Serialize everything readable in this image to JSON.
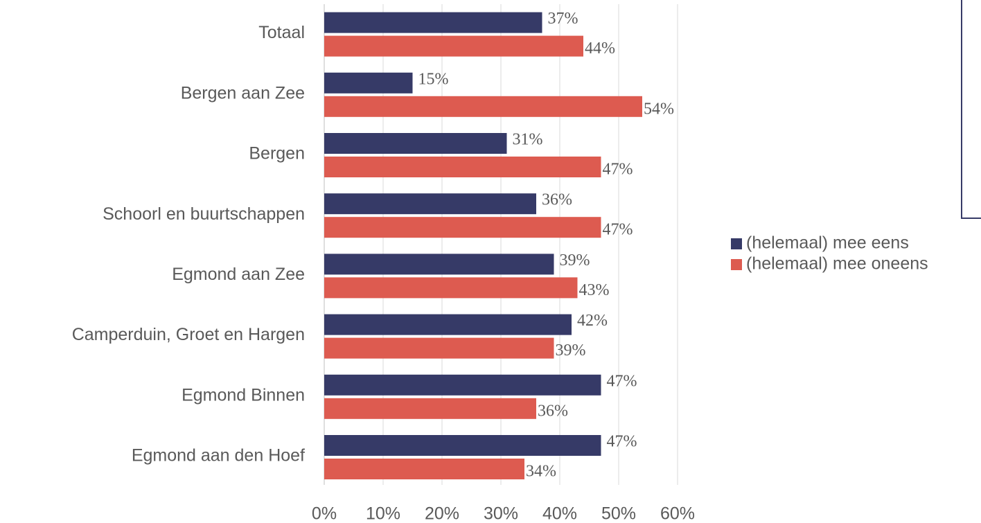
{
  "chart_data": {
    "type": "bar",
    "orientation": "horizontal",
    "categories": [
      "Totaal",
      "Bergen aan Zee",
      "Bergen",
      "Schoorl en buurtschappen",
      "Egmond aan Zee",
      "Camperduin, Groet en Hargen",
      "Egmond Binnen",
      "Egmond aan den Hoef"
    ],
    "series": [
      {
        "name": "(helemaal) mee eens",
        "color": "#363a67",
        "values": [
          37,
          15,
          31,
          36,
          39,
          42,
          47,
          47
        ],
        "value_labels": [
          "37%",
          "15%",
          "31%",
          "36%",
          "39%",
          "42%",
          "47%",
          "47%"
        ]
      },
      {
        "name": "(helemaal) mee oneens",
        "color": "#dd5b50",
        "values": [
          44,
          54,
          47,
          47,
          43,
          39,
          36,
          34
        ],
        "value_labels": [
          "44%",
          "54%",
          "47%",
          "47%",
          "43%",
          "39%",
          "36%",
          "34%"
        ]
      }
    ],
    "xlim": [
      0,
      60
    ],
    "xticks": [
      {
        "value": 0,
        "label": "0%"
      },
      {
        "value": 10,
        "label": "10%"
      },
      {
        "value": 20,
        "label": "20%"
      },
      {
        "value": 30,
        "label": "30%"
      },
      {
        "value": 40,
        "label": "40%"
      },
      {
        "value": 50,
        "label": "50%"
      },
      {
        "value": 60,
        "label": "60%"
      }
    ],
    "grid": true,
    "legend": "right"
  }
}
